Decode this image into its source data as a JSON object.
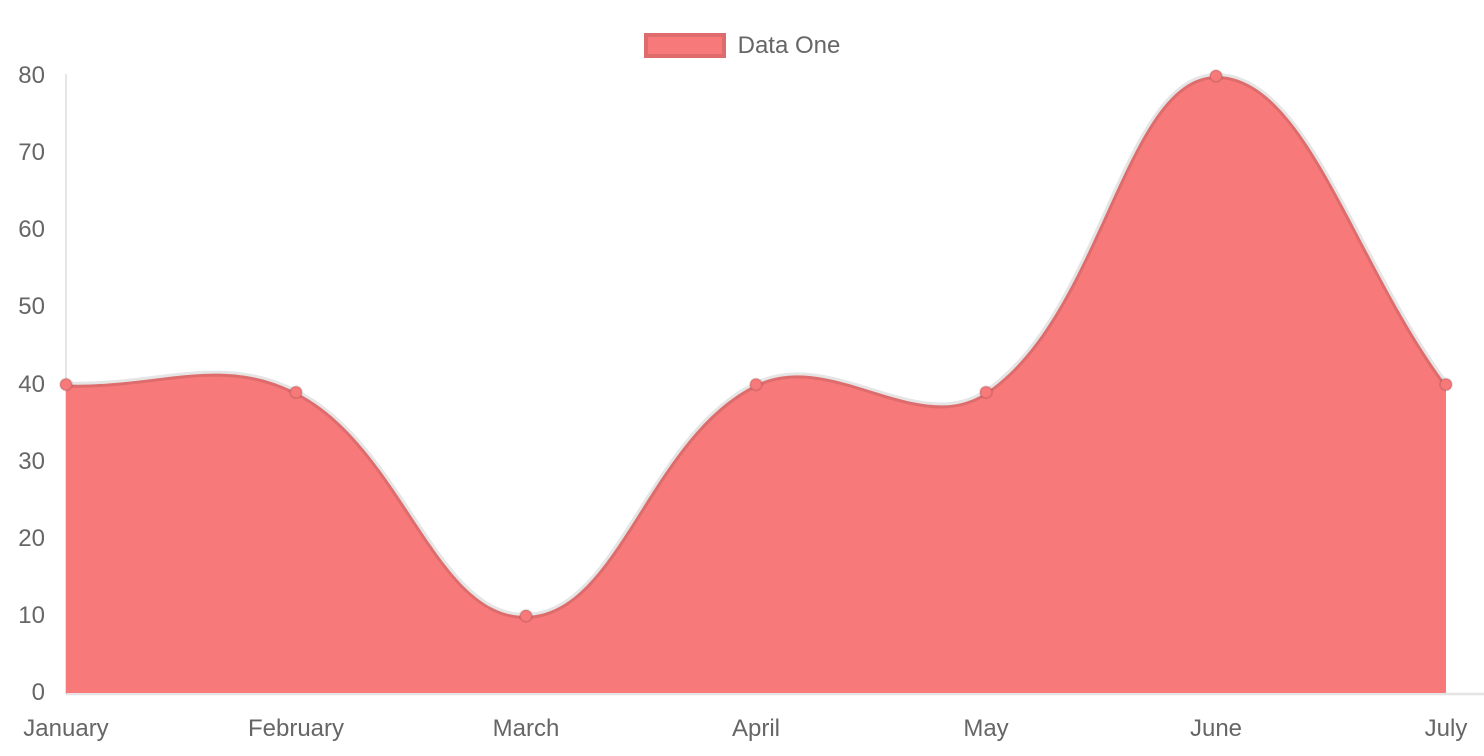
{
  "chart_data": {
    "type": "area",
    "title": "",
    "xlabel": "",
    "ylabel": "",
    "categories": [
      "January",
      "February",
      "March",
      "April",
      "May",
      "June",
      "July"
    ],
    "series": [
      {
        "name": "Data One",
        "values": [
          40,
          39,
          10,
          40,
          39,
          80,
          40
        ]
      }
    ],
    "ylim": [
      0,
      80
    ],
    "yticks": [
      0,
      10,
      20,
      30,
      40,
      50,
      60,
      70,
      80
    ],
    "grid": false,
    "legend_position": "top",
    "line_tension": 0.4,
    "colors": {
      "fill": "#f87979",
      "point_fill": "#f87979",
      "point_border": "rgba(0,0,0,0.1)",
      "line_border": "rgba(0,0,0,0.1)",
      "axis_line": "rgba(0,0,0,0.1)",
      "tick_text": "#666666",
      "legend_text": "#666666"
    }
  }
}
